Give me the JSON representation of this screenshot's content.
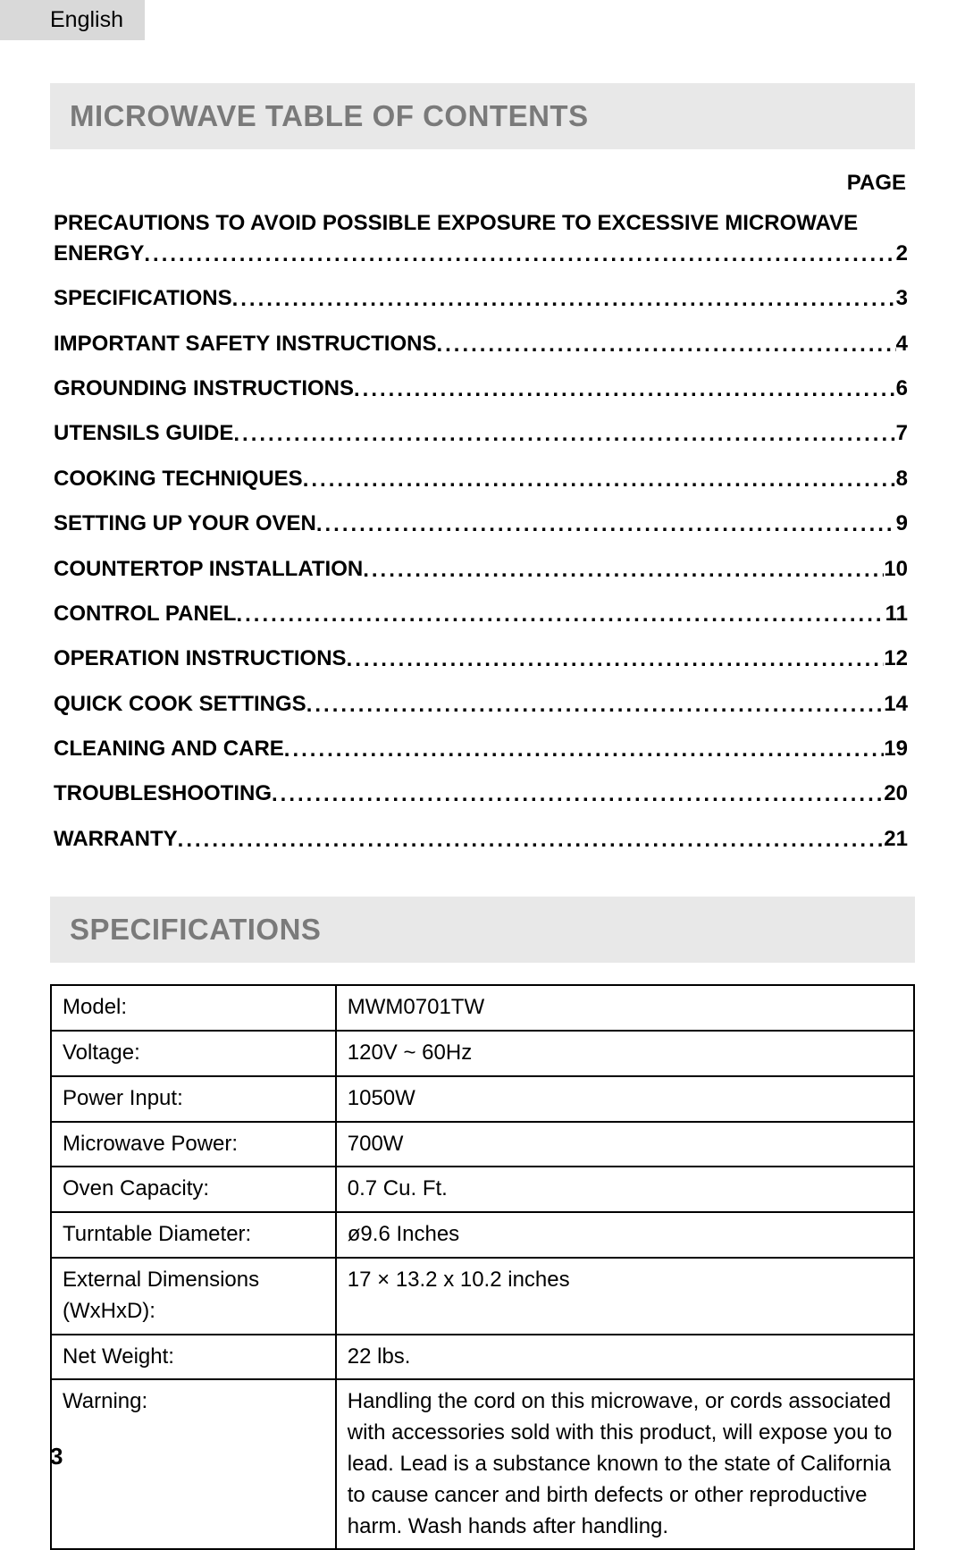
{
  "lang_tab": "English",
  "headers": {
    "toc": "MICROWAVE TABLE OF CONTENTS",
    "specs": "SPECIFICATIONS",
    "page_label": "PAGE"
  },
  "toc": [
    {
      "title_line1": "PRECAUTIONS TO AVOID POSSIBLE EXPOSURE TO EXCESSIVE MICROWAVE",
      "title_line2": "ENERGY",
      "page": "2",
      "wrap": true
    },
    {
      "title": "SPECIFICATIONS",
      "page": "3"
    },
    {
      "title": "IMPORTANT SAFETY INSTRUCTIONS",
      "page": "4"
    },
    {
      "title": "GROUNDING INSTRUCTIONS",
      "page": "6"
    },
    {
      "title": "UTENSILS GUIDE",
      "page": "7"
    },
    {
      "title": "COOKING TECHNIQUES",
      "page": "8"
    },
    {
      "title": "SETTING UP YOUR OVEN",
      "page": "9"
    },
    {
      "title": "COUNTERTOP INSTALLATION",
      "page": "10"
    },
    {
      "title": "CONTROL PANEL",
      "page": "11"
    },
    {
      "title": "OPERATION INSTRUCTIONS",
      "page": "12"
    },
    {
      "title": "QUICK COOK SETTINGS",
      "page": "14"
    },
    {
      "title": "CLEANING AND CARE",
      "page": "19"
    },
    {
      "title": "TROUBLESHOOTING",
      "page": "20"
    },
    {
      "title": "WARRANTY",
      "page": "21"
    }
  ],
  "specs": [
    {
      "label": "Model:",
      "value": "MWM0701TW"
    },
    {
      "label": "Voltage:",
      "value": "120V ~ 60Hz"
    },
    {
      "label": "Power Input:",
      "value": "1050W"
    },
    {
      "label": "Microwave Power:",
      "value": "700W"
    },
    {
      "label": "Oven Capacity:",
      "value": "0.7 Cu. Ft."
    },
    {
      "label": "Turntable Diameter:",
      "value": "ø9.6 Inches"
    },
    {
      "label": "External Dimensions (WxHxD):",
      "value": "17 × 13.2 x 10.2 inches"
    },
    {
      "label": "Net Weight:",
      "value": "22 lbs."
    },
    {
      "label": "Warning:",
      "value": "Handling the cord on this microwave, or cords associated with accessories sold with this product, will expose you to lead. Lead is a substance known to the state of California to cause cancer and birth defects or other reproductive harm. Wash hands after handling."
    }
  ],
  "page_number": "3"
}
